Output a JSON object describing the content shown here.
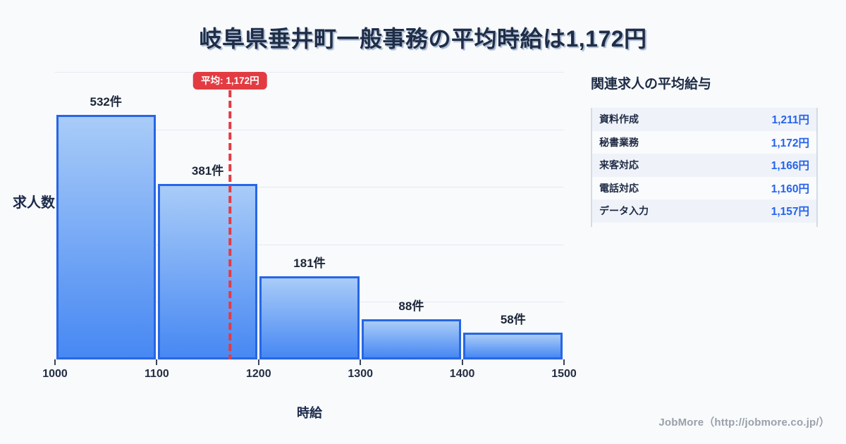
{
  "title": "岐阜県垂井町一般事務の平均時給は1,172円",
  "chart_data": {
    "type": "bar",
    "title": "岐阜県垂井町一般事務の平均時給は1,172円",
    "xlabel": "時給",
    "ylabel": "求人数",
    "bin_edges": [
      1000,
      1100,
      1200,
      1300,
      1400,
      1500
    ],
    "x_tick_labels": [
      "1000",
      "1100",
      "1200",
      "1300",
      "1400",
      "1500"
    ],
    "values": [
      532,
      381,
      181,
      88,
      58
    ],
    "bar_labels": [
      "532件",
      "381件",
      "181件",
      "88件",
      "58件"
    ],
    "ylim": [
      0,
      625
    ],
    "grid": true,
    "legend": false,
    "average_line": {
      "x": 1172,
      "label": "平均: 1,172円",
      "color": "#e23c42"
    },
    "colors": {
      "bar_top": "#a9ccf8",
      "bar_bottom": "#4788f3",
      "bar_border": "#2766e5",
      "grid": "#e5eaf2",
      "average": "#e23c42"
    }
  },
  "side_panel": {
    "heading": "関連求人の平均給与",
    "rows": [
      {
        "label": "資料作成",
        "value": "1,211円"
      },
      {
        "label": "秘書業務",
        "value": "1,172円"
      },
      {
        "label": "来客対応",
        "value": "1,166円"
      },
      {
        "label": "電話対応",
        "value": "1,160円"
      },
      {
        "label": "データ入力",
        "value": "1,157円"
      }
    ]
  },
  "footer": {
    "credit": "JobMore（http://jobmore.co.jp/）"
  }
}
